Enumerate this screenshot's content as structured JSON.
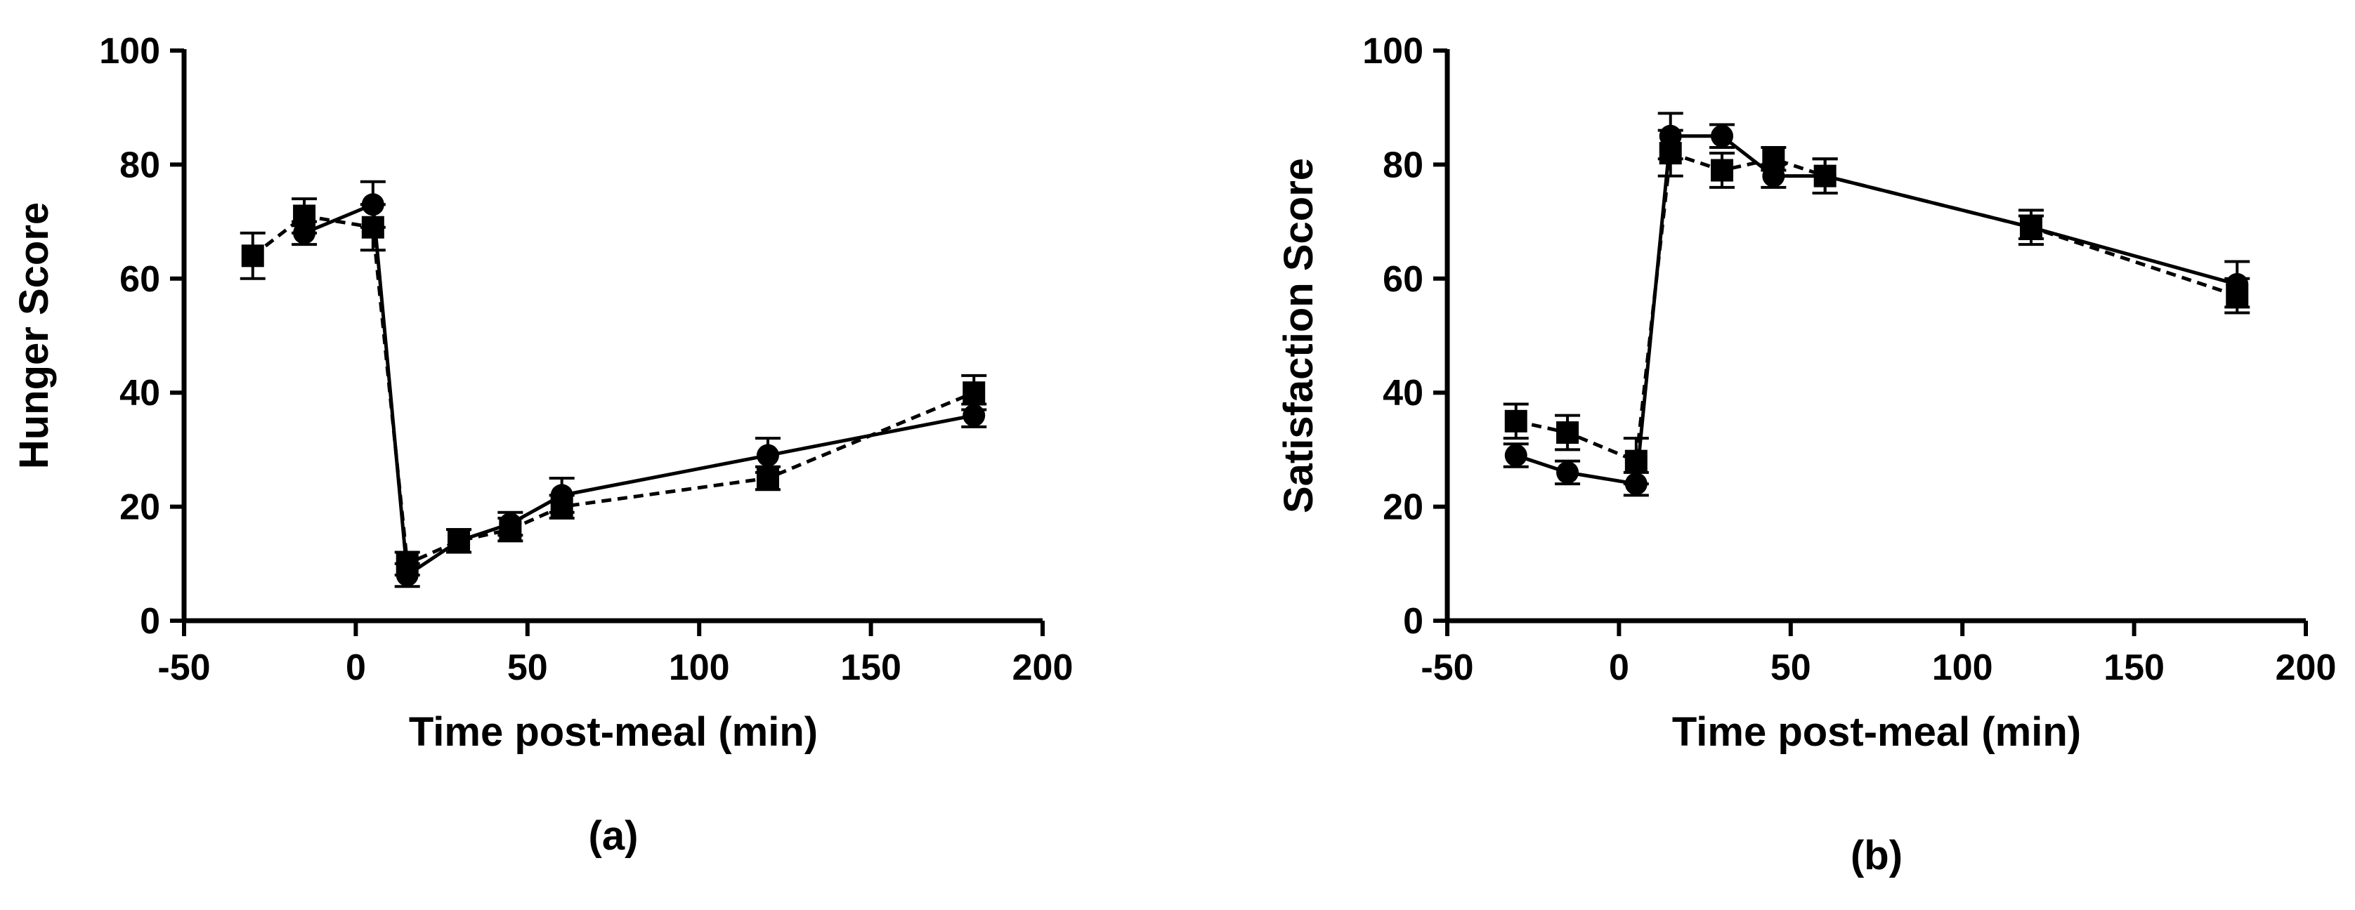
{
  "chart_data": [
    {
      "type": "line",
      "panel_label": "(a)",
      "title": "",
      "xlabel": "Time post-meal (min)",
      "ylabel": "Hunger Score",
      "xlim": [
        -50,
        200
      ],
      "ylim": [
        0,
        100
      ],
      "xticks": [
        -50,
        0,
        50,
        100,
        150,
        200
      ],
      "yticks": [
        0,
        20,
        40,
        60,
        80,
        100
      ],
      "xtick_labels": [
        "-50",
        "0",
        "50",
        "100",
        "150",
        "200"
      ],
      "ytick_labels": [
        "0",
        "20",
        "40",
        "60",
        "80",
        "100"
      ],
      "grid": false,
      "legend": "none",
      "series": [
        {
          "name": "circle-solid",
          "marker": "circle",
          "line_style": "solid",
          "color": "#000000",
          "x": [
            -15,
            5,
            15,
            30,
            45,
            60,
            120,
            180
          ],
          "values": [
            68,
            73,
            8,
            14,
            17,
            22,
            29,
            36
          ],
          "errors": [
            2,
            4,
            2,
            2,
            2,
            3,
            3,
            2
          ]
        },
        {
          "name": "square-dashed",
          "marker": "square",
          "line_style": "dashed",
          "color": "#000000",
          "x": [
            -30,
            -15,
            5,
            15,
            30,
            45,
            60,
            120,
            180
          ],
          "values": [
            64,
            71,
            69,
            10,
            14,
            16,
            20,
            25,
            40
          ],
          "errors": [
            4,
            3,
            4,
            2,
            2,
            2,
            2,
            2,
            3
          ]
        }
      ]
    },
    {
      "type": "line",
      "panel_label": "(b)",
      "title": "",
      "xlabel": "Time post-meal (min)",
      "ylabel": "Satisfaction Score",
      "xlim": [
        -50,
        200
      ],
      "ylim": [
        0,
        100
      ],
      "xticks": [
        -50,
        0,
        50,
        100,
        150,
        200
      ],
      "yticks": [
        0,
        20,
        40,
        60,
        80,
        100
      ],
      "xtick_labels": [
        "-50",
        "0",
        "50",
        "100",
        "150",
        "200"
      ],
      "ytick_labels": [
        "0",
        "20",
        "40",
        "60",
        "80",
        "100"
      ],
      "grid": false,
      "legend": "none",
      "series": [
        {
          "name": "circle-solid",
          "marker": "circle",
          "line_style": "solid",
          "color": "#000000",
          "x": [
            -30,
            -15,
            5,
            15,
            30,
            45,
            60,
            120,
            180
          ],
          "values": [
            29,
            26,
            24,
            85,
            85,
            78,
            78,
            69,
            59
          ],
          "errors": [
            2,
            2,
            2,
            4,
            2,
            2,
            3,
            2,
            4
          ]
        },
        {
          "name": "square-dashed",
          "marker": "square",
          "line_style": "dashed",
          "color": "#000000",
          "x": [
            -30,
            -15,
            5,
            15,
            30,
            45,
            60,
            120,
            180
          ],
          "values": [
            35,
            33,
            28,
            82,
            79,
            81,
            78,
            69,
            57
          ],
          "errors": [
            3,
            3,
            4,
            4,
            3,
            2,
            3,
            3,
            3
          ]
        }
      ]
    }
  ]
}
